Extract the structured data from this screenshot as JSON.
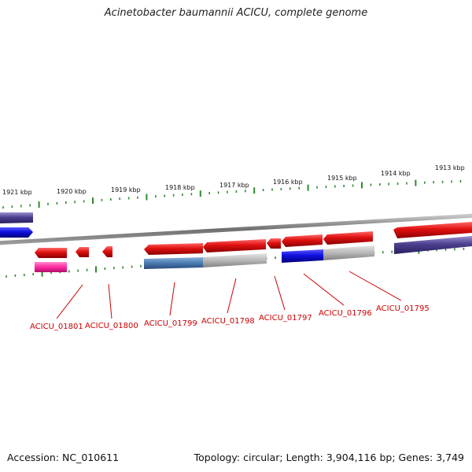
{
  "title": "Acinetobacter baumannii ACICU, complete genome",
  "footer": {
    "accession": "Accession: NC_010611",
    "summary": "Topology: circular; Length: 3,904,116 bp; Genes: 3,749"
  },
  "colors": {
    "backbone": "#8a8a8a",
    "tick": "#2e8b2e",
    "gene_label": "#cc0000",
    "red_feature": "#e01010",
    "blue_feature": "#1010e0",
    "indigo_feature": "#4b3f8f",
    "magenta_feature": "#ff2aa0",
    "steelblue_feature": "#4a7ab0",
    "gray_feature": "#b8b8b8"
  },
  "kbp_labels": [
    "1921 kbp",
    "1920 kbp",
    "1919 kbp",
    "1918 kbp",
    "1917 kbp",
    "1916 kbp",
    "1915 kbp",
    "1914 kbp",
    "1913 kbp"
  ],
  "gene_labels": [
    "ACICU_01801",
    "ACICU_01800",
    "ACICU_01799",
    "ACICU_01798",
    "ACICU_01797",
    "ACICU_01796",
    "ACICU_01795"
  ]
}
